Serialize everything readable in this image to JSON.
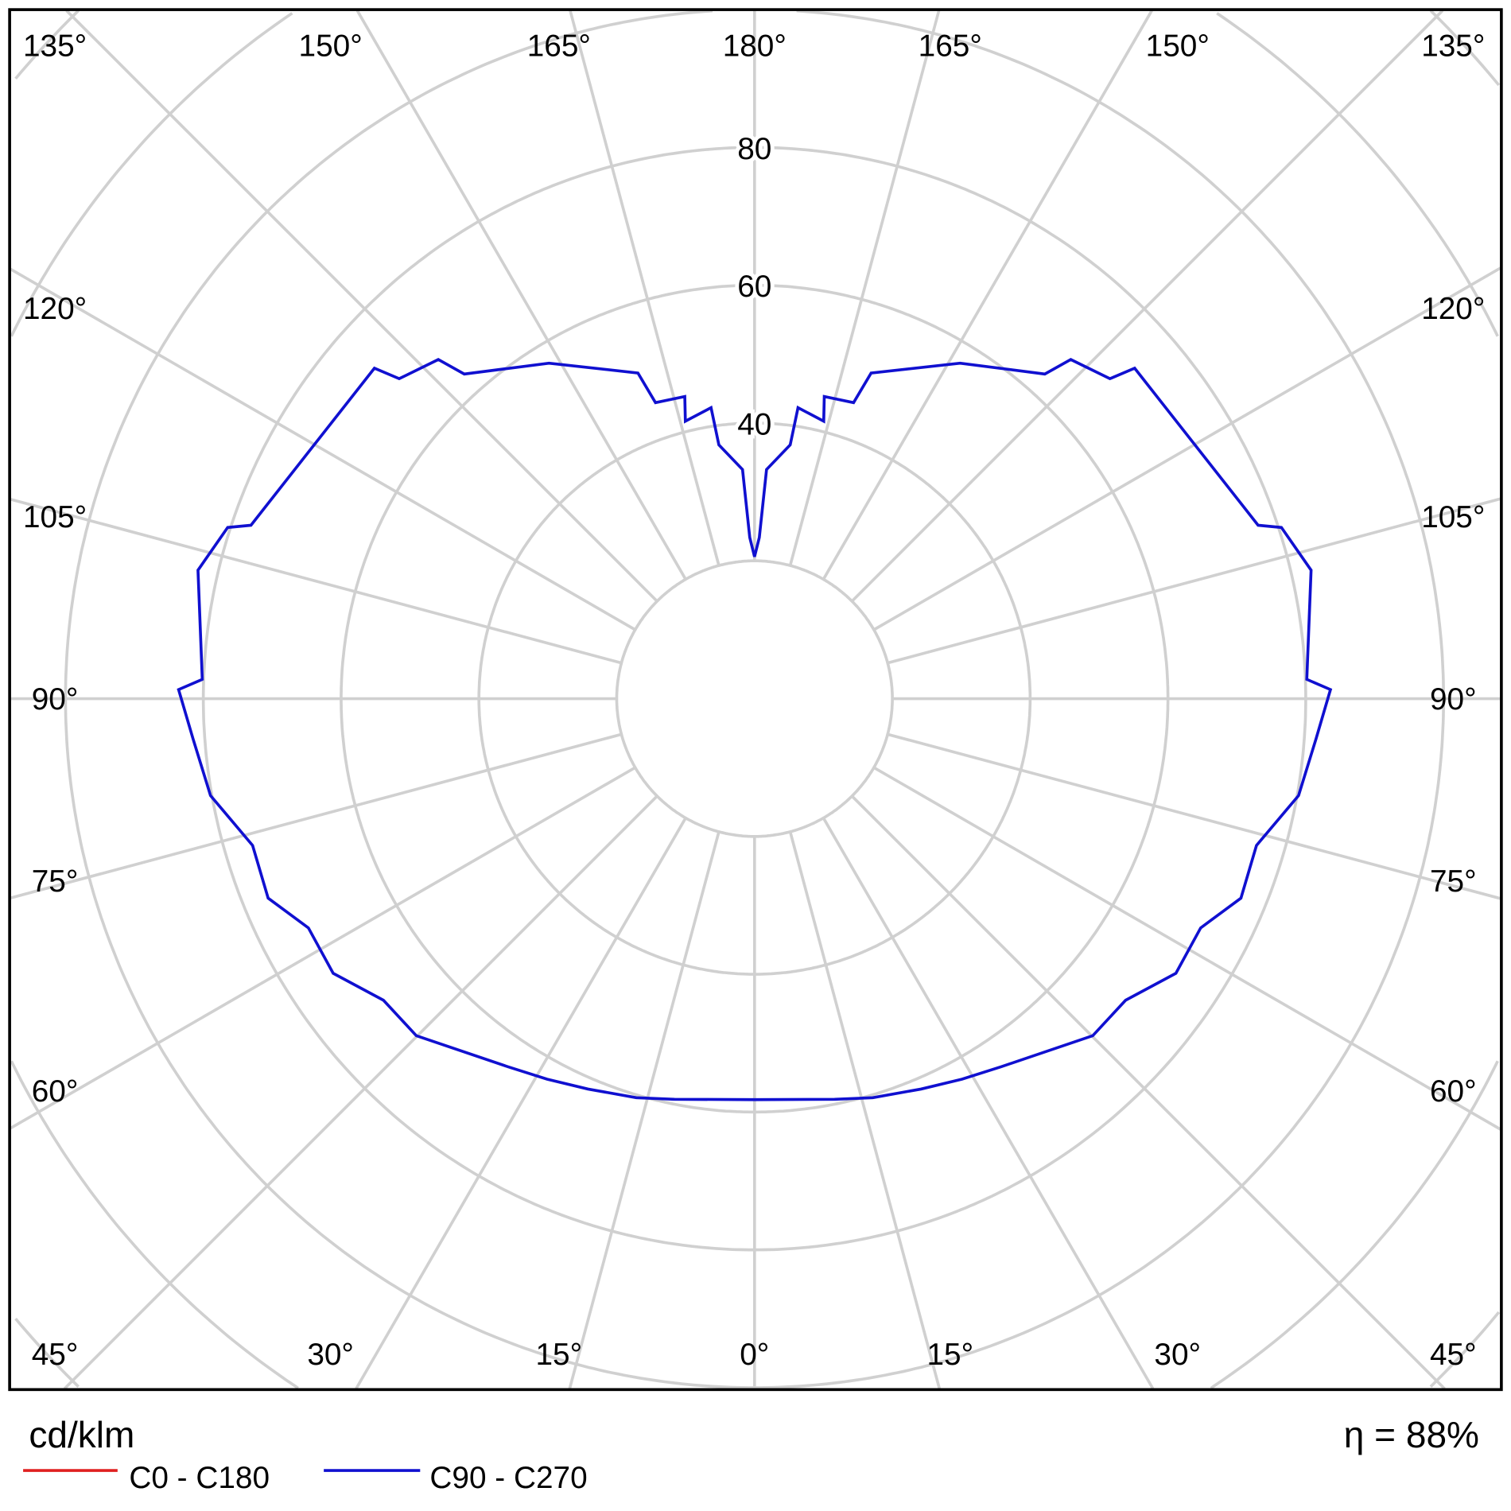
{
  "chart_data": {
    "type": "polar",
    "unit_label": "cd/klm",
    "efficiency_label": "η = 88%",
    "radial_ticks": [
      20,
      40,
      60,
      80,
      100,
      120,
      140
    ],
    "radial_tick_labels": [
      "40",
      "60",
      "80"
    ],
    "angle_labels_top": [
      "135°",
      "150°",
      "165°",
      "180°",
      "165°",
      "150°",
      "135°"
    ],
    "angle_labels_side": [
      "120°",
      "105°",
      "90°",
      "75°",
      "60°"
    ],
    "angle_labels_bottom": [
      "45°",
      "30°",
      "15°",
      "0°",
      "15°",
      "30°",
      "45°"
    ],
    "grid": true,
    "legend_position": "bottom-left",
    "series": [
      {
        "name": "C0 - C180",
        "color": "#e02020",
        "gamma": [],
        "values": []
      },
      {
        "name": "C90 - C270",
        "color": "#1010d0",
        "gamma": [
          0,
          11.3,
          16.5,
          23.1,
          28.6,
          33.8,
          45.1,
          50.9,
          56.9,
          62.8,
          67.7,
          73.7,
          79.9,
          85.9,
          90.9,
          92,
          103,
          108,
          109,
          131,
          132,
          137,
          138.2,
          148.5,
          160.3,
          161.5,
          167,
          166,
          171.5,
          172,
          177,
          178.3,
          180
        ],
        "values": [
          58.2,
          59.3,
          60.4,
          61.6,
          62.9,
          64.3,
          69.3,
          69.4,
          73,
          72.8,
          76.3,
          75.9,
          80.2,
          81.7,
          83.6,
          80.2,
          82.9,
          80.4,
          77.3,
          73.1,
          69.4,
          67.3,
          63.2,
          57.1,
          50.2,
          45.3,
          45,
          41.5,
          42.7,
          37.2,
          33.3,
          23.4,
          20.6
        ]
      }
    ]
  }
}
